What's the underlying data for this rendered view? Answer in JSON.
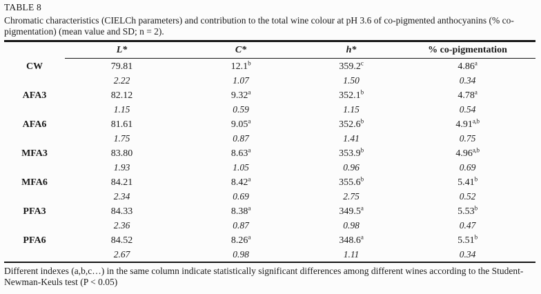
{
  "page": {
    "table_number": "TABLE 8",
    "caption": "Chromatic characteristics (CIELCh parameters) and contribution to the total wine colour at pH 3.6 of co-pigmented anthocyanins (% co-pigmentation) (mean value and SD; n = 2).",
    "footnote": "Different indexes (a,b,c…) in the same column indicate statistically significant differences among different wines according to the Student-Newman-Keuls test (P < 0.05)"
  },
  "table": {
    "columns": [
      "L*",
      "C*",
      "h*",
      "% co-pigmentation"
    ],
    "rows": [
      {
        "label": "CW",
        "means": [
          "79.81",
          "12.1",
          "359.2",
          "4.86"
        ],
        "sups": [
          "",
          "b",
          "c",
          "a"
        ],
        "sds": [
          "2.22",
          "1.07",
          "1.50",
          "0.34"
        ]
      },
      {
        "label": "AFA3",
        "means": [
          "82.12",
          "9.32",
          "352.1",
          "4.78"
        ],
        "sups": [
          "",
          "a",
          "b",
          "a"
        ],
        "sds": [
          "1.15",
          "0.59",
          "1.15",
          "0.54"
        ]
      },
      {
        "label": "AFA6",
        "means": [
          "81.61",
          "9.05",
          "352.6",
          "4.91"
        ],
        "sups": [
          "",
          "a",
          "b",
          "a,b"
        ],
        "sds": [
          "1.75",
          "0.87",
          "1.41",
          "0.75"
        ]
      },
      {
        "label": "MFA3",
        "means": [
          "83.80",
          "8.63",
          "353.9",
          "4.96"
        ],
        "sups": [
          "",
          "a",
          "b",
          "a,b"
        ],
        "sds": [
          "1.93",
          "1.05",
          "0.96",
          "0.69"
        ]
      },
      {
        "label": "MFA6",
        "means": [
          "84.21",
          "8.42",
          "355.6",
          "5.41"
        ],
        "sups": [
          "",
          "a",
          "b",
          "b"
        ],
        "sds": [
          "2.34",
          "0.69",
          "2.75",
          "0.52"
        ]
      },
      {
        "label": "PFA3",
        "means": [
          "84.33",
          "8.38",
          "349.5",
          "5.53"
        ],
        "sups": [
          "",
          "a",
          "a",
          "b"
        ],
        "sds": [
          "2.36",
          "0.87",
          "0.98",
          "0.47"
        ]
      },
      {
        "label": "PFA6",
        "means": [
          "84.52",
          "8.26",
          "348.6",
          "5.51"
        ],
        "sups": [
          "",
          "a",
          "a",
          "b"
        ],
        "sds": [
          "2.67",
          "0.98",
          "1.11",
          "0.34"
        ]
      }
    ]
  },
  "colors": {
    "text": "#1a1a1a",
    "rule": "#141414",
    "background": "#fcfcfc"
  }
}
